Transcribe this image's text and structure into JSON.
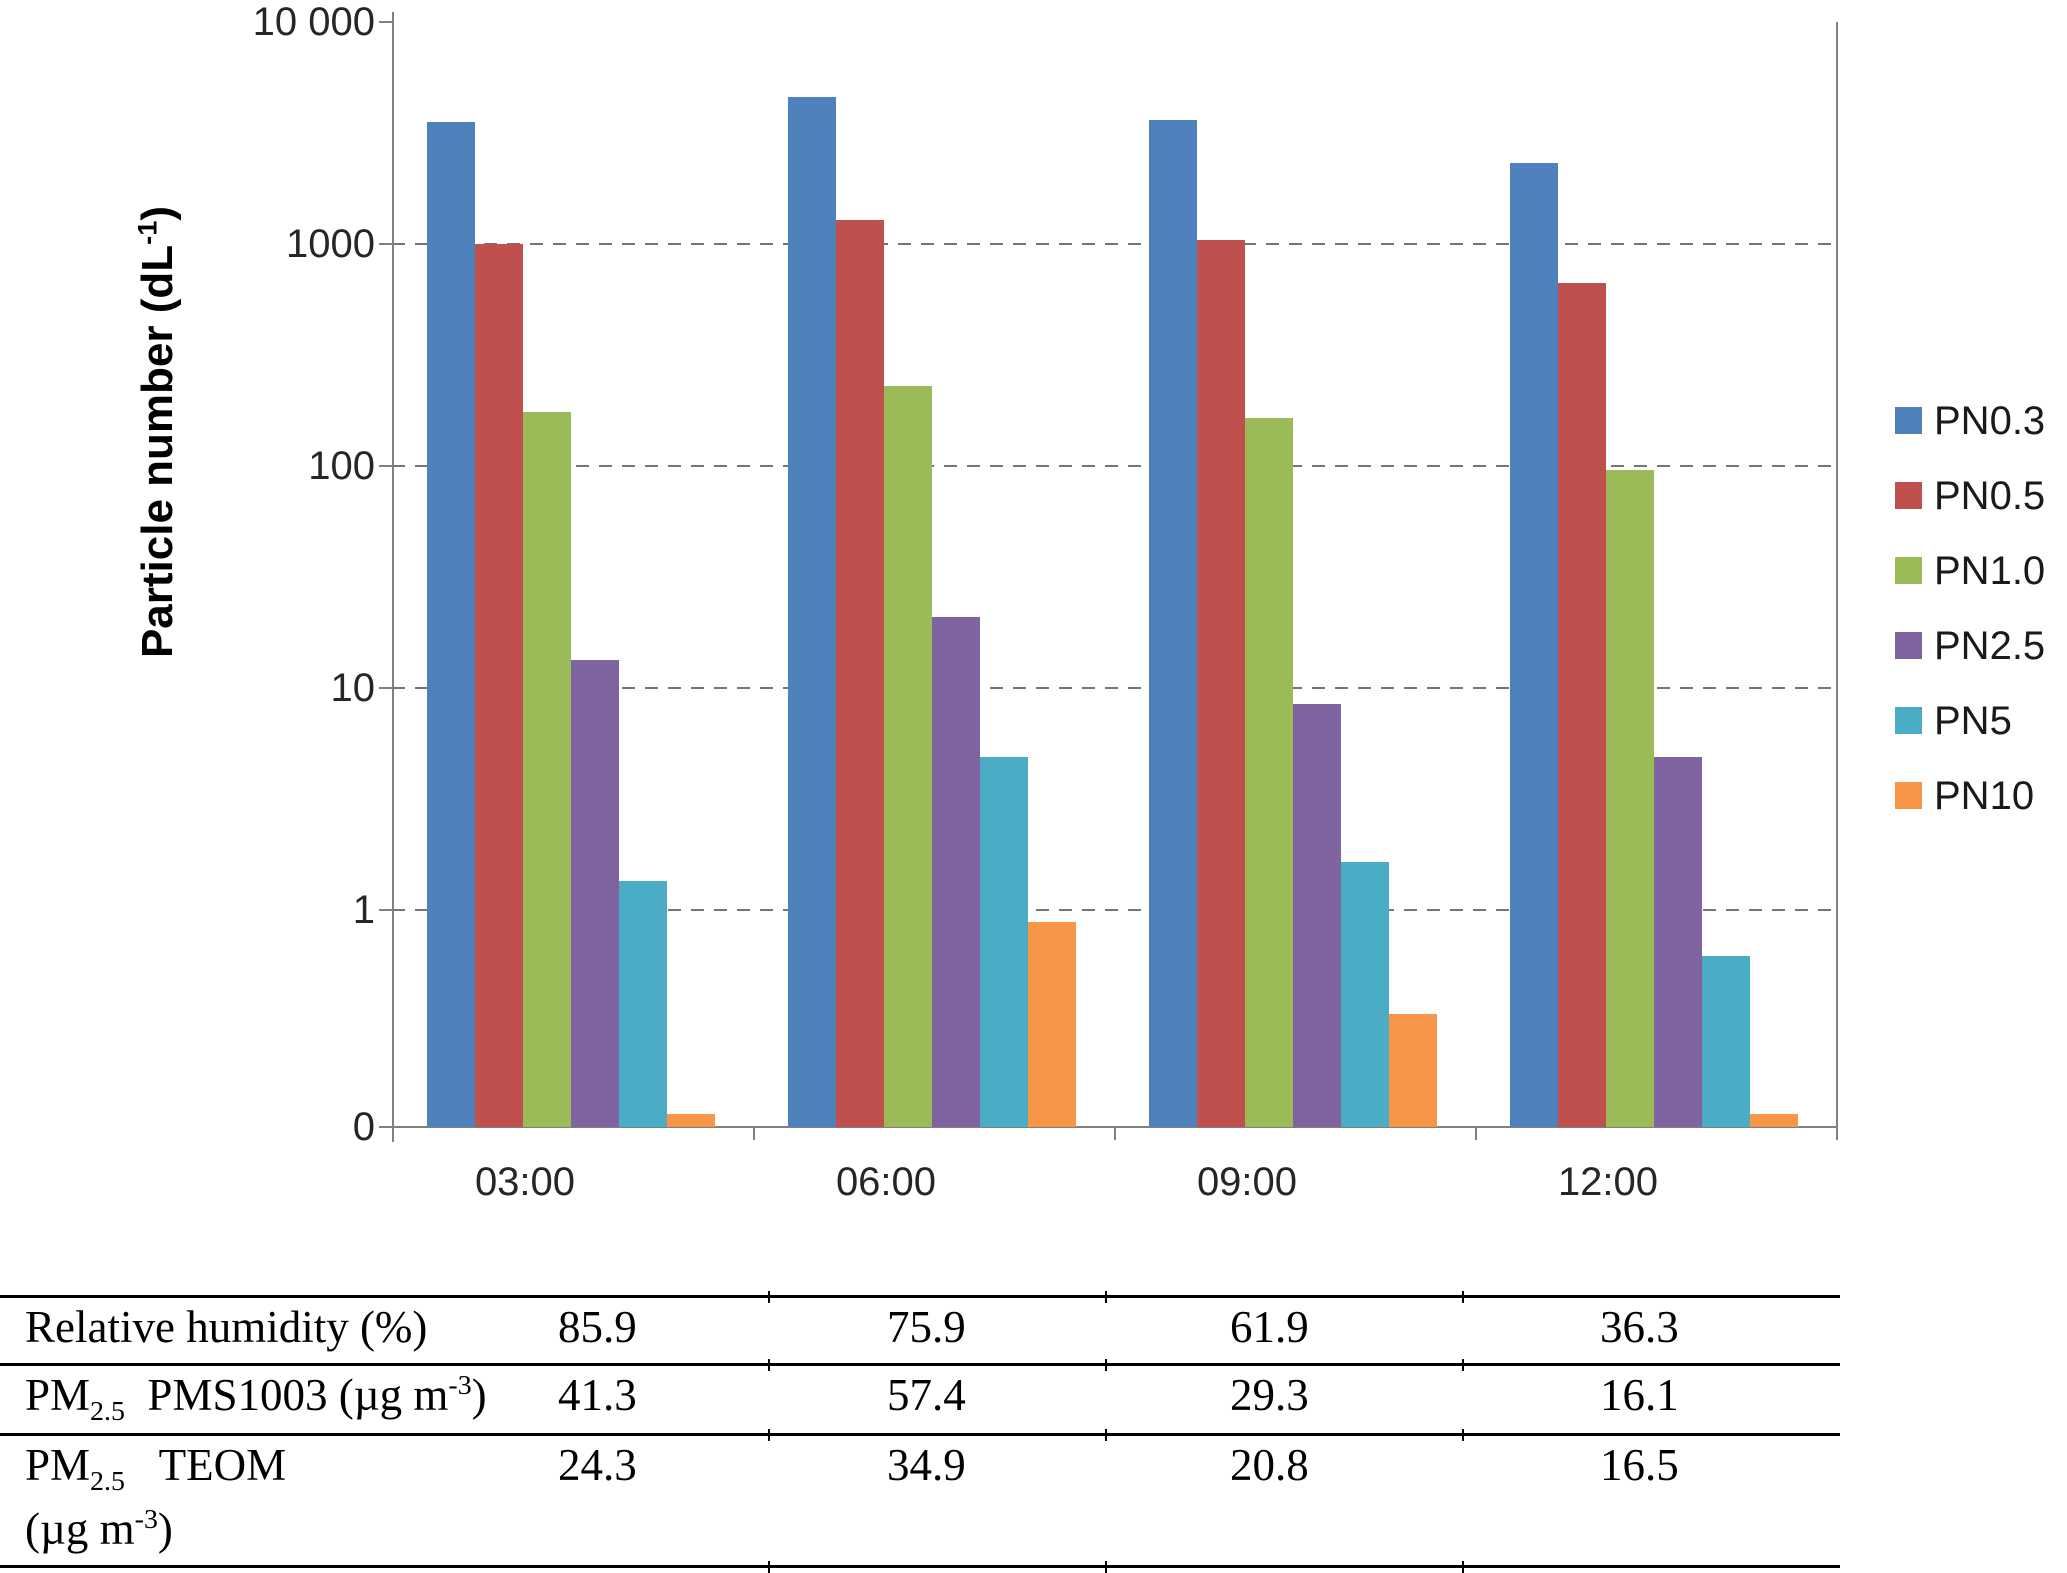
{
  "chart_data": {
    "type": "bar",
    "title": "",
    "xlabel": "",
    "ylabel_parts": [
      {
        "text": "Particle number (dL"
      },
      {
        "sup": "-1"
      },
      {
        "text": ")"
      }
    ],
    "y_scale": "log",
    "ylim": [
      0.1,
      10000
    ],
    "y_tick_labels": [
      "10 000",
      "1000",
      "100",
      "10",
      "1",
      "0"
    ],
    "gridlines": "horizontal-dashed",
    "legend_position": "right",
    "categories": [
      "03:00",
      "06:00",
      "09:00",
      "12:00"
    ],
    "series": [
      {
        "name": "PN0.3",
        "color": "#4F81BD",
        "values": [
          3600,
          4700,
          3700,
          2350
        ]
      },
      {
        "name": "PN0.5",
        "color": "#C0504D",
        "values": [
          1020,
          1300,
          1060,
          680
        ]
      },
      {
        "name": "PN1.0",
        "color": "#9BBB59",
        "values": [
          178,
          232,
          167,
          97
        ]
      },
      {
        "name": "PN2.5",
        "color": "#8064A2",
        "values": [
          13.5,
          21,
          8.5,
          4.9
        ]
      },
      {
        "name": "PN5",
        "color": "#4BACC6",
        "values": [
          1.35,
          4.9,
          1.65,
          0.62
        ]
      },
      {
        "name": "PN10",
        "color": "#F79646",
        "values": [
          0.12,
          0.88,
          0.34,
          0.12
        ]
      }
    ]
  },
  "table": {
    "rows": [
      {
        "label_lines": [
          [
            {
              "text": "Relative humidity (%)"
            }
          ]
        ],
        "values": [
          "85.9",
          "75.9",
          "61.9",
          "36.3"
        ]
      },
      {
        "label_lines": [
          [
            {
              "text": "PM"
            },
            {
              "sub": "2.5"
            },
            {
              "text": "  PMS1003 (µg m"
            },
            {
              "sup": "-3"
            },
            {
              "text": ")"
            }
          ]
        ],
        "values": [
          "41.3",
          "57.4",
          "29.3",
          "16.1"
        ]
      },
      {
        "label_lines": [
          [
            {
              "text": "PM"
            },
            {
              "sub": "2.5"
            },
            {
              "text": "   TEOM"
            }
          ],
          [
            {
              "text": "(µg m"
            },
            {
              "sup": "-3"
            },
            {
              "text": ")"
            }
          ]
        ],
        "values": [
          "24.3",
          "34.9",
          "20.8",
          "16.5"
        ]
      }
    ]
  },
  "colors": {
    "axis": "#808080",
    "grid": "#757575",
    "tick_text": "#262626",
    "table_line": "#000000"
  }
}
